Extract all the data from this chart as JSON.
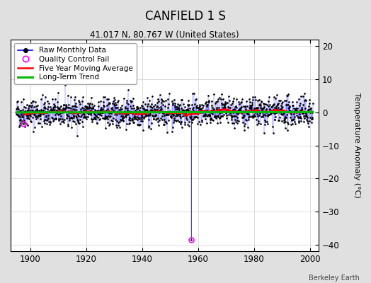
{
  "title": "CANFIELD 1 S",
  "subtitle": "41.017 N, 80.767 W (United States)",
  "ylabel": "Temperature Anomaly (°C)",
  "attribution": "Berkeley Earth",
  "xlim": [
    1893,
    2003
  ],
  "ylim": [
    -42,
    22
  ],
  "yticks": [
    -40,
    -30,
    -20,
    -10,
    0,
    10,
    20
  ],
  "xticks": [
    1900,
    1920,
    1940,
    1960,
    1980,
    2000
  ],
  "bg_color": "#e0e0e0",
  "plot_bg_color": "#ffffff",
  "raw_line_color": "#0000ff",
  "raw_dot_color": "#000000",
  "qc_fail_color": "#ff00ff",
  "moving_avg_color": "#ff0000",
  "trend_color": "#00bb00",
  "seed": 42,
  "start_year": 1895.0,
  "end_year": 2000.9,
  "noise_std": 2.2,
  "moving_avg_window": 60,
  "trend_value": 0.05,
  "qc_fail_points": [
    [
      1897.5,
      -3.5
    ],
    [
      1957.5,
      -38.5
    ]
  ],
  "figsize": [
    5.24,
    4.0
  ],
  "dpi": 100
}
